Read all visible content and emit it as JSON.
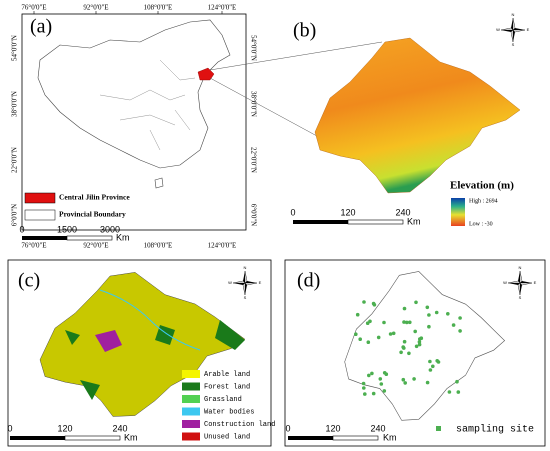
{
  "compass": {
    "n": "N",
    "s": "S",
    "w": "W",
    "e": "E"
  },
  "panels": [
    {
      "label": "(a)",
      "lon_labels": [
        "76°0'0\"E",
        "92°0'0\"E",
        "108°0'0\"E",
        "124°0'0\"E"
      ],
      "lat_labels": [
        "54°0'0\"N",
        "38°0'0\"N",
        "22°0'0\"N",
        "6°0'0\"N"
      ],
      "legend": [
        "Central Jilin Province",
        "Provincial Boundary"
      ],
      "scale": [
        "0",
        "1500",
        "3000",
        "Km"
      ]
    },
    {
      "label": "(b)",
      "legend_title": "Elevation (m)",
      "high": "High : 2694",
      "low": "Low : -30",
      "scale": [
        "0",
        "120",
        "240",
        "Km"
      ]
    },
    {
      "label": "(c)",
      "legend": [
        "Arable land",
        "Forest land",
        "Grassland",
        "Water bodies",
        "Construction land",
        "Unused land"
      ],
      "scale": [
        "0",
        "120",
        "240",
        "Km"
      ]
    },
    {
      "label": "(d)",
      "legend": [
        "sampling site"
      ],
      "scale": [
        "0",
        "120",
        "240",
        "Km"
      ]
    }
  ]
}
